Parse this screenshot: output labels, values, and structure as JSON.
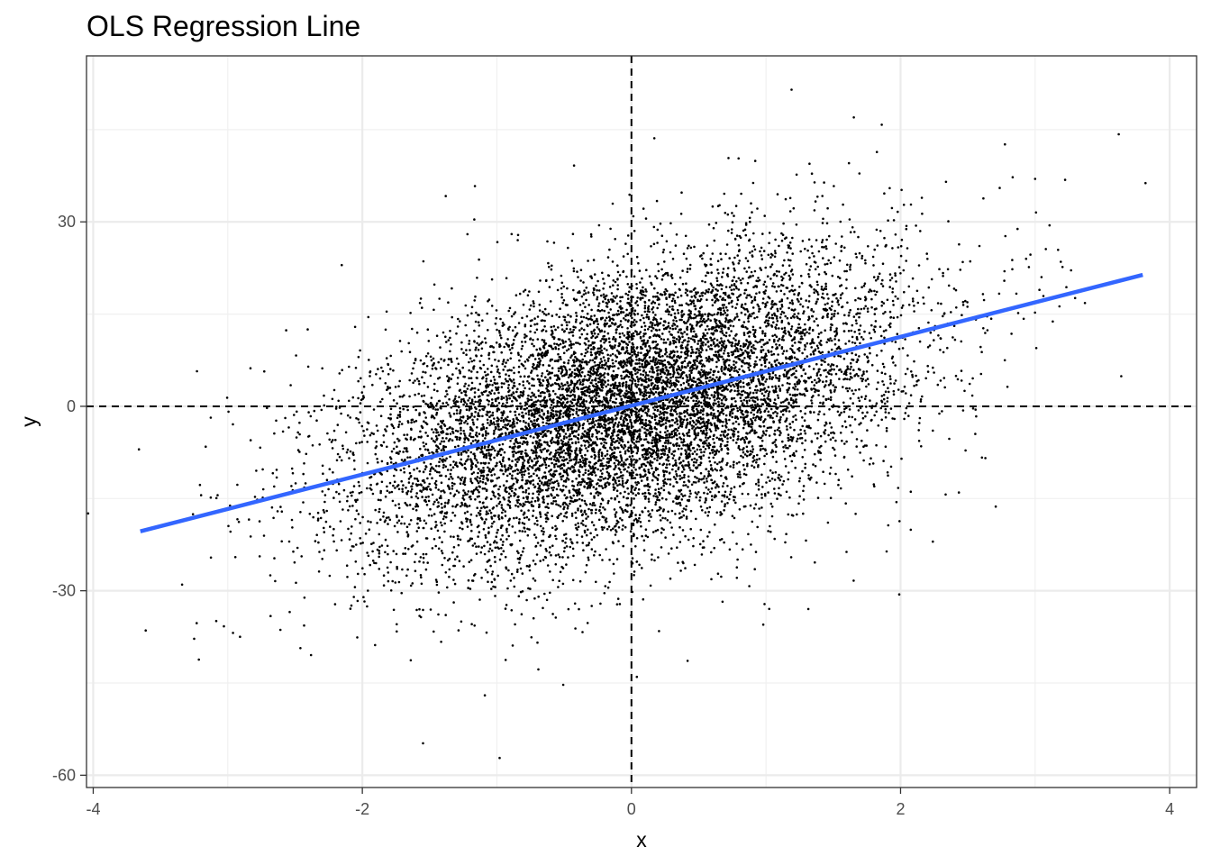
{
  "chart_data": {
    "type": "scatter",
    "title": "OLS Regression Line",
    "xlabel": "x",
    "ylabel": "y",
    "xlim": [
      -4.05,
      4.2
    ],
    "ylim": [
      -62,
      57
    ],
    "x_ticks": [
      -4,
      -2,
      0,
      2,
      4
    ],
    "x_tick_labels": [
      "-4",
      "-2",
      "0",
      "2",
      "4"
    ],
    "y_ticks": [
      -60,
      -30,
      0,
      30
    ],
    "y_tick_labels": [
      "-60",
      "-30",
      "0",
      "30"
    ],
    "x_minor_ticks": [
      -3,
      -1,
      1,
      3
    ],
    "y_minor_ticks": [
      -45,
      -15,
      15,
      45
    ],
    "grid": true,
    "reference_lines": {
      "x": 0,
      "y": 0,
      "style": "dashed"
    },
    "scatter": {
      "color": "#000000",
      "n": 10000,
      "x_mean": 0,
      "x_sd": 1,
      "y_slope": 5.6,
      "y_noise_sd": 11
    },
    "regression_line": {
      "color": "#3366ff",
      "intercept": 0.1,
      "slope": 5.6,
      "x_range": [
        -3.65,
        3.8
      ]
    },
    "outliers": [
      {
        "x": 1.19,
        "y": 51.5
      },
      {
        "x": 1.86,
        "y": 45.8
      },
      {
        "x": -0.98,
        "y": -57.2
      },
      {
        "x": 0.04,
        "y": -44.0
      },
      {
        "x": 3.82,
        "y": 36.3
      },
      {
        "x": -3.66,
        "y": -7.0
      },
      {
        "x": -3.25,
        "y": -37.8
      },
      {
        "x": 1.99,
        "y": -30.6
      },
      {
        "x": 3.64,
        "y": 4.9
      },
      {
        "x": 0.98,
        "y": -35.5
      },
      {
        "x": -1.38,
        "y": 34.2
      },
      {
        "x": 0.17,
        "y": 43.6
      },
      {
        "x": -1.64,
        "y": -41.3
      },
      {
        "x": 2.24,
        "y": -22.0
      },
      {
        "x": 3.37,
        "y": 16.8
      },
      {
        "x": 3.0,
        "y": 37.0
      }
    ]
  }
}
